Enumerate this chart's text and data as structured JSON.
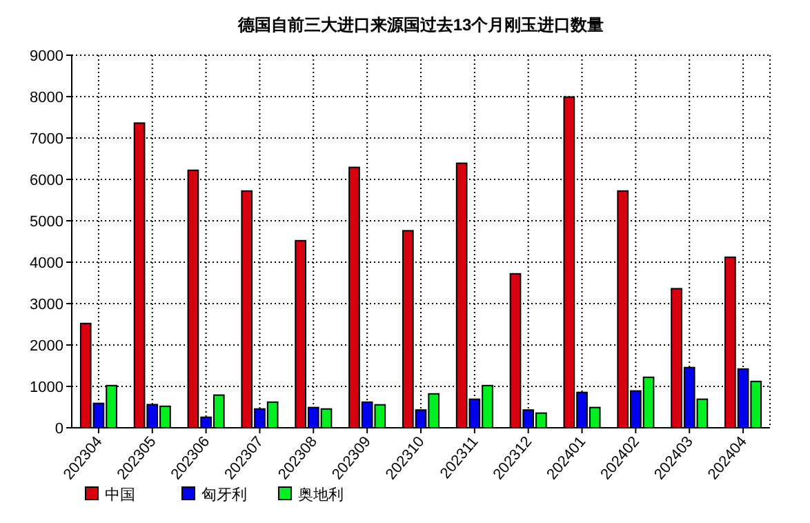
{
  "chart_data": {
    "type": "bar",
    "title": "德国自前三大进口来源国过去13个月刚玉进口数量",
    "categories": [
      "202304",
      "202305",
      "202306",
      "202307",
      "202308",
      "202309",
      "202310",
      "202311",
      "202312",
      "202401",
      "202402",
      "202403",
      "202404"
    ],
    "series": [
      {
        "name": "中国",
        "color": "#d7000f",
        "values": [
          2520,
          7360,
          6220,
          5720,
          4520,
          6290,
          4760,
          6390,
          3720,
          7990,
          5720,
          3360,
          4120
        ]
      },
      {
        "name": "匈牙利",
        "color": "#0000ee",
        "values": [
          590,
          560,
          255,
          455,
          490,
          620,
          430,
          690,
          430,
          855,
          890,
          1455,
          1420
        ]
      },
      {
        "name": "奥地利",
        "color": "#00ee22",
        "values": [
          1020,
          520,
          790,
          620,
          455,
          555,
          820,
          1020,
          355,
          490,
          1220,
          690,
          1120
        ]
      }
    ],
    "ylim": [
      0,
      9000
    ],
    "yticks": [
      0,
      1000,
      2000,
      3000,
      4000,
      5000,
      6000,
      7000,
      8000,
      9000
    ],
    "grid": true,
    "legend": "bottom left"
  }
}
